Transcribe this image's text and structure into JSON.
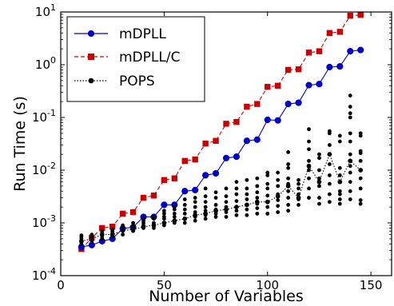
{
  "chart_data": {
    "type": "line",
    "title": "",
    "xlabel": "Number of Variables",
    "ylabel": "Run Time (s)",
    "xlim": [
      0,
      160
    ],
    "ylim": [
      0.0001,
      10
    ],
    "yscale": "log",
    "grid": false,
    "legend_position": "top-left",
    "x_ticks": [
      0,
      50,
      100,
      150
    ],
    "y_ticks": [
      {
        "value": 0.0001,
        "base": "10",
        "exp": "-4"
      },
      {
        "value": 0.001,
        "base": "10",
        "exp": "-3"
      },
      {
        "value": 0.01,
        "base": "10",
        "exp": "-2"
      },
      {
        "value": 0.1,
        "base": "10",
        "exp": "-1"
      },
      {
        "value": 1,
        "base": "10",
        "exp": "0"
      },
      {
        "value": 10,
        "base": "10",
        "exp": "1"
      }
    ],
    "series": [
      {
        "name": "mDPLL",
        "color": "#0000cc",
        "linestyle": "solid",
        "marker": "circle",
        "x": [
          10,
          15,
          20,
          25,
          30,
          35,
          40,
          45,
          50,
          55,
          60,
          65,
          70,
          75,
          80,
          85,
          90,
          95,
          100,
          105,
          110,
          115,
          120,
          125,
          130,
          135,
          140,
          145
        ],
        "y": [
          0.00035,
          0.00038,
          0.00045,
          0.0005,
          0.00078,
          0.00083,
          0.0013,
          0.0013,
          0.0022,
          0.0022,
          0.004,
          0.0042,
          0.008,
          0.0087,
          0.017,
          0.018,
          0.036,
          0.038,
          0.09,
          0.088,
          0.18,
          0.19,
          0.41,
          0.43,
          0.9,
          0.93,
          1.8,
          1.9
        ]
      },
      {
        "name": "mDPLL/C",
        "color": "#cc0000",
        "linestyle": "dashed",
        "marker": "square",
        "x": [
          10,
          15,
          20,
          25,
          30,
          35,
          40,
          45,
          50,
          55,
          60,
          65,
          70,
          75,
          80,
          85,
          90,
          95,
          100,
          105,
          110,
          115,
          120,
          125,
          130,
          135,
          140,
          145
        ],
        "y": [
          0.00032,
          0.00052,
          0.0008,
          0.00085,
          0.0015,
          0.0016,
          0.003,
          0.0033,
          0.0065,
          0.007,
          0.015,
          0.016,
          0.032,
          0.036,
          0.076,
          0.082,
          0.16,
          0.18,
          0.38,
          0.4,
          0.8,
          0.82,
          1.7,
          1.8,
          4.0,
          4.2,
          8.5,
          8.8
        ]
      },
      {
        "name": "POPS",
        "color": "#000000",
        "linestyle": "dotted",
        "marker": "circle",
        "x": [
          10,
          15,
          20,
          25,
          30,
          35,
          40,
          45,
          50,
          55,
          60,
          65,
          70,
          75,
          80,
          85,
          90,
          95,
          100,
          105,
          110,
          115,
          120,
          125,
          130,
          135,
          140,
          145
        ],
        "y": [
          0.00045,
          0.0005,
          0.0006,
          0.0006,
          0.00072,
          0.00075,
          0.00085,
          0.0009,
          0.001,
          0.0011,
          0.0012,
          0.0014,
          0.0015,
          0.0017,
          0.0018,
          0.002,
          0.0022,
          0.0025,
          0.0025,
          0.0032,
          0.005,
          0.003,
          0.012,
          0.006,
          0.02,
          0.006,
          0.015,
          0.01
        ]
      }
    ],
    "scatter_points": {
      "name": "POPS runs",
      "color": "#000000",
      "points": [
        [
          10,
          0.00045
        ],
        [
          10,
          0.0005
        ],
        [
          10,
          0.00055
        ],
        [
          10,
          0.0004
        ],
        [
          10,
          0.00058
        ],
        [
          15,
          0.00045
        ],
        [
          15,
          0.0005
        ],
        [
          15,
          0.00055
        ],
        [
          15,
          0.0006
        ],
        [
          15,
          0.00052
        ],
        [
          20,
          0.0005
        ],
        [
          20,
          0.00055
        ],
        [
          20,
          0.0006
        ],
        [
          20,
          0.00065
        ],
        [
          20,
          0.0007
        ],
        [
          25,
          0.00055
        ],
        [
          25,
          0.0006
        ],
        [
          25,
          0.00065
        ],
        [
          25,
          0.0007
        ],
        [
          25,
          0.00075
        ],
        [
          30,
          0.0006
        ],
        [
          30,
          0.0007
        ],
        [
          30,
          0.00075
        ],
        [
          30,
          0.0008
        ],
        [
          30,
          0.0009
        ],
        [
          35,
          0.0007
        ],
        [
          35,
          0.00075
        ],
        [
          35,
          0.0008
        ],
        [
          35,
          0.0009
        ],
        [
          35,
          0.001
        ],
        [
          40,
          0.0008
        ],
        [
          40,
          0.0009
        ],
        [
          40,
          0.001
        ],
        [
          40,
          0.0011
        ],
        [
          40,
          0.0012
        ],
        [
          45,
          0.0008
        ],
        [
          45,
          0.0009
        ],
        [
          45,
          0.001
        ],
        [
          45,
          0.0012
        ],
        [
          45,
          0.0013
        ],
        [
          50,
          0.0009
        ],
        [
          50,
          0.001
        ],
        [
          50,
          0.0012
        ],
        [
          50,
          0.0013
        ],
        [
          50,
          0.0015
        ],
        [
          50,
          0.0017
        ],
        [
          55,
          0.001
        ],
        [
          55,
          0.0011
        ],
        [
          55,
          0.0013
        ],
        [
          55,
          0.0015
        ],
        [
          55,
          0.0018
        ],
        [
          55,
          0.002
        ],
        [
          60,
          0.001
        ],
        [
          60,
          0.0012
        ],
        [
          60,
          0.0015
        ],
        [
          60,
          0.0018
        ],
        [
          60,
          0.0022
        ],
        [
          60,
          0.0028
        ],
        [
          65,
          0.0011
        ],
        [
          65,
          0.0013
        ],
        [
          65,
          0.0016
        ],
        [
          65,
          0.002
        ],
        [
          65,
          0.0025
        ],
        [
          65,
          0.003
        ],
        [
          70,
          0.0012
        ],
        [
          70,
          0.0014
        ],
        [
          70,
          0.0017
        ],
        [
          70,
          0.002
        ],
        [
          70,
          0.0025
        ],
        [
          70,
          0.0032
        ],
        [
          70,
          0.0045
        ],
        [
          75,
          0.0013
        ],
        [
          75,
          0.0015
        ],
        [
          75,
          0.0018
        ],
        [
          75,
          0.0022
        ],
        [
          75,
          0.003
        ],
        [
          75,
          0.0038
        ],
        [
          80,
          0.0013
        ],
        [
          80,
          0.0016
        ],
        [
          80,
          0.002
        ],
        [
          80,
          0.0025
        ],
        [
          80,
          0.0032
        ],
        [
          80,
          0.0045
        ],
        [
          85,
          0.0014
        ],
        [
          85,
          0.0017
        ],
        [
          85,
          0.002
        ],
        [
          85,
          0.0026
        ],
        [
          85,
          0.0035
        ],
        [
          85,
          0.0045
        ],
        [
          85,
          0.006
        ],
        [
          90,
          0.0014
        ],
        [
          90,
          0.0018
        ],
        [
          90,
          0.0022
        ],
        [
          90,
          0.0028
        ],
        [
          90,
          0.0035
        ],
        [
          90,
          0.0045
        ],
        [
          90,
          0.0065
        ],
        [
          95,
          0.0015
        ],
        [
          95,
          0.0019
        ],
        [
          95,
          0.0023
        ],
        [
          95,
          0.003
        ],
        [
          95,
          0.0038
        ],
        [
          95,
          0.005
        ],
        [
          95,
          0.007
        ],
        [
          100,
          0.0015
        ],
        [
          100,
          0.002
        ],
        [
          100,
          0.0025
        ],
        [
          100,
          0.0033
        ],
        [
          100,
          0.0045
        ],
        [
          100,
          0.0055
        ],
        [
          100,
          0.008
        ],
        [
          100,
          0.009
        ],
        [
          105,
          0.0016
        ],
        [
          105,
          0.0021
        ],
        [
          105,
          0.0027
        ],
        [
          105,
          0.0035
        ],
        [
          105,
          0.005
        ],
        [
          105,
          0.0065
        ],
        [
          105,
          0.009
        ],
        [
          110,
          0.0017
        ],
        [
          110,
          0.0022
        ],
        [
          110,
          0.003
        ],
        [
          110,
          0.004
        ],
        [
          110,
          0.0055
        ],
        [
          110,
          0.007
        ],
        [
          110,
          0.011
        ],
        [
          110,
          0.013
        ],
        [
          110,
          0.022
        ],
        [
          115,
          0.0022
        ],
        [
          115,
          0.0028
        ],
        [
          115,
          0.0035
        ],
        [
          115,
          0.0045
        ],
        [
          115,
          0.0055
        ],
        [
          115,
          0.0065
        ],
        [
          120,
          0.003
        ],
        [
          120,
          0.0045
        ],
        [
          120,
          0.007
        ],
        [
          120,
          0.01
        ],
        [
          120,
          0.015
        ],
        [
          120,
          0.025
        ],
        [
          120,
          0.035
        ],
        [
          120,
          0.06
        ],
        [
          125,
          0.0023
        ],
        [
          125,
          0.003
        ],
        [
          125,
          0.005
        ],
        [
          125,
          0.007
        ],
        [
          125,
          0.01
        ],
        [
          125,
          0.017
        ],
        [
          125,
          0.02
        ],
        [
          130,
          0.0025
        ],
        [
          130,
          0.0035
        ],
        [
          130,
          0.0055
        ],
        [
          130,
          0.008
        ],
        [
          130,
          0.013
        ],
        [
          130,
          0.02
        ],
        [
          130,
          0.03
        ],
        [
          130,
          0.05
        ],
        [
          130,
          0.055
        ],
        [
          135,
          0.0023
        ],
        [
          135,
          0.0028
        ],
        [
          135,
          0.0035
        ],
        [
          135,
          0.004
        ],
        [
          135,
          0.008
        ],
        [
          135,
          0.011
        ],
        [
          135,
          0.035
        ],
        [
          135,
          0.045
        ],
        [
          140,
          0.0028
        ],
        [
          140,
          0.004
        ],
        [
          140,
          0.006
        ],
        [
          140,
          0.009
        ],
        [
          140,
          0.012
        ],
        [
          140,
          0.02
        ],
        [
          140,
          0.035
        ],
        [
          140,
          0.05
        ],
        [
          140,
          0.1
        ],
        [
          140,
          0.12
        ],
        [
          140,
          0.16
        ],
        [
          140,
          0.26
        ],
        [
          145,
          0.0023
        ],
        [
          145,
          0.0027
        ],
        [
          145,
          0.0045
        ],
        [
          145,
          0.007
        ],
        [
          145,
          0.01
        ],
        [
          145,
          0.015
        ],
        [
          145,
          0.021
        ],
        [
          145,
          0.023
        ],
        [
          145,
          0.045
        ],
        [
          145,
          0.05
        ]
      ]
    }
  }
}
